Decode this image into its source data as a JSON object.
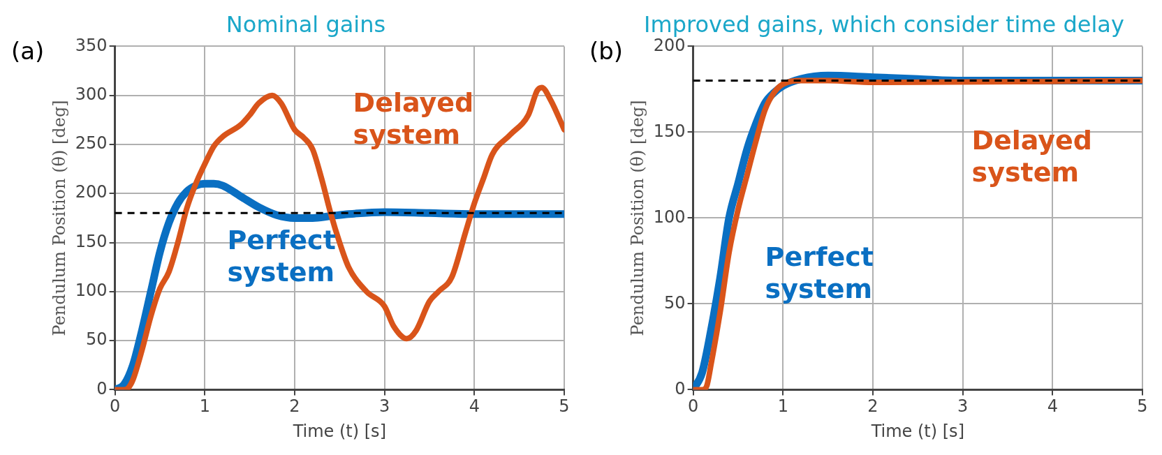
{
  "chart_data": [
    {
      "type": "line",
      "title": "Nominal gains",
      "xlabel": "Time (t) [s]",
      "ylabel": "Pendulum Position (θ) [deg]",
      "xlim": [
        0,
        5
      ],
      "xticks": [
        0,
        1,
        2,
        3,
        4,
        5
      ],
      "ylim": [
        0,
        350
      ],
      "yticks": [
        0,
        50,
        100,
        150,
        200,
        250,
        300,
        350
      ],
      "grid": true,
      "legend": false,
      "marker": "none",
      "line_style": "solid",
      "annotations": [
        "(a)"
      ],
      "ref_lines": [
        {
          "axis": "y",
          "value": 180,
          "color": "#000000",
          "line_style": "dashed"
        }
      ],
      "series": [
        {
          "name": "Perfect system",
          "color": "#0a6fc2",
          "x": [
            0,
            0.1,
            0.2,
            0.3,
            0.4,
            0.5,
            0.6,
            0.7,
            0.8,
            0.9,
            1.0,
            1.1,
            1.2,
            1.4,
            1.6,
            1.8,
            2.0,
            2.2,
            2.4,
            2.6,
            3.0,
            3.5,
            4.0,
            4.5,
            5.0
          ],
          "values": [
            0,
            5,
            25,
            60,
            100,
            140,
            170,
            190,
            202,
            208,
            210,
            210,
            208,
            197,
            186,
            178,
            175,
            175,
            177,
            179,
            181,
            180,
            179,
            179,
            179
          ]
        },
        {
          "name": "Delayed system",
          "color": "#d9541a",
          "x": [
            0,
            0.1,
            0.15,
            0.2,
            0.3,
            0.4,
            0.5,
            0.6,
            0.7,
            0.8,
            0.9,
            1.0,
            1.1,
            1.2,
            1.4,
            1.5,
            1.6,
            1.75,
            1.85,
            2.0,
            2.1,
            2.2,
            2.3,
            2.4,
            2.5,
            2.6,
            2.8,
            3.0,
            3.1,
            3.25,
            3.35,
            3.5,
            3.6,
            3.75,
            3.9,
            4.0,
            4.1,
            4.2,
            4.4,
            4.6,
            4.7,
            4.75,
            4.85,
            5.0
          ],
          "values": [
            0,
            0,
            2,
            10,
            40,
            75,
            103,
            120,
            150,
            185,
            210,
            230,
            248,
            258,
            270,
            280,
            292,
            300,
            292,
            265,
            257,
            245,
            215,
            180,
            150,
            125,
            100,
            85,
            65,
            52,
            60,
            90,
            100,
            115,
            160,
            190,
            215,
            240,
            260,
            280,
            305,
            308,
            295,
            265
          ]
        }
      ]
    },
    {
      "type": "line",
      "title": "Improved gains, which consider time delay",
      "xlabel": "Time (t) [s]",
      "ylabel": "Pendulum Position (θ) [deg]",
      "xlim": [
        0,
        5
      ],
      "xticks": [
        0,
        1,
        2,
        3,
        4,
        5
      ],
      "ylim": [
        0,
        200
      ],
      "yticks": [
        0,
        50,
        100,
        150,
        200
      ],
      "grid": true,
      "legend": false,
      "marker": "none",
      "line_style": "solid",
      "annotations": [
        "(b)"
      ],
      "ref_lines": [
        {
          "axis": "y",
          "value": 180,
          "color": "#000000",
          "line_style": "dashed"
        }
      ],
      "series": [
        {
          "name": "Perfect system",
          "color": "#0a6fc2",
          "x": [
            0,
            0.1,
            0.2,
            0.3,
            0.4,
            0.5,
            0.6,
            0.7,
            0.8,
            0.9,
            1.0,
            1.2,
            1.5,
            2.0,
            2.5,
            3.0,
            5.0
          ],
          "values": [
            0,
            10,
            35,
            65,
            100,
            120,
            140,
            155,
            167,
            173,
            177,
            181,
            183,
            182,
            181,
            180,
            180
          ]
        },
        {
          "name": "Delayed system",
          "color": "#d9541a",
          "x": [
            0,
            0.1,
            0.15,
            0.2,
            0.3,
            0.4,
            0.5,
            0.6,
            0.7,
            0.8,
            0.9,
            1.0,
            1.2,
            1.5,
            2.0,
            5.0
          ],
          "values": [
            0,
            0,
            2,
            15,
            45,
            80,
            105,
            125,
            145,
            163,
            173,
            178,
            180,
            180,
            179,
            180
          ]
        }
      ]
    }
  ]
}
